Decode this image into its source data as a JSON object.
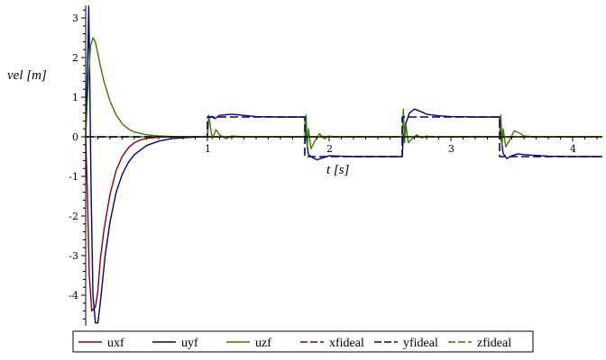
{
  "chart_data": {
    "type": "line",
    "title": "",
    "xlabel": "t [s]",
    "ylabel": "vel [m]",
    "xlim": [
      0,
      4.25
    ],
    "ylim": [
      -4.7,
      3.3
    ],
    "x_ticks": [
      1,
      2,
      3,
      4
    ],
    "y_ticks": [
      3,
      2,
      1,
      0,
      -1,
      -2,
      -3,
      -4
    ],
    "grid": false,
    "legend_position": "bottom",
    "series": [
      {
        "name": "uxf",
        "color": "#8b0000",
        "dash": "solid",
        "x": [
          0,
          0.015,
          0.03,
          0.05,
          0.08,
          0.1,
          0.12,
          0.15,
          0.2,
          0.25,
          0.3,
          0.35,
          0.4,
          0.45,
          0.5,
          0.6,
          0.7,
          0.9,
          1.0,
          1.8,
          2.6,
          3.4,
          4.25
        ],
        "y": [
          0,
          -1.5,
          -3.5,
          -4.4,
          -4.3,
          -3.9,
          -3.1,
          -2.35,
          -1.45,
          -0.85,
          -0.5,
          -0.28,
          -0.15,
          -0.08,
          -0.04,
          -0.01,
          0,
          0,
          0,
          0,
          0,
          0,
          0
        ]
      },
      {
        "name": "uyf",
        "color": "#000080",
        "dash": "solid",
        "x": [
          0,
          0.02,
          0.025,
          0.03,
          0.045,
          0.06,
          0.08,
          0.1,
          0.12,
          0.14,
          0.16,
          0.2,
          0.25,
          0.3,
          0.35,
          0.4,
          0.5,
          0.6,
          0.7,
          0.8,
          0.9,
          0.96,
          0.99,
          1.0,
          1.01,
          1.03,
          1.06,
          1.1,
          1.2,
          1.3,
          1.4,
          1.6,
          1.8,
          1.81,
          1.83,
          1.86,
          1.9,
          1.95,
          2.0,
          2.1,
          2.2,
          2.4,
          2.6,
          2.61,
          2.63,
          2.66,
          2.7,
          2.75,
          2.8,
          2.9,
          3.0,
          3.2,
          3.4,
          3.41,
          3.43,
          3.46,
          3.5,
          3.55,
          3.6,
          3.8,
          4.0,
          4.25
        ],
        "y": [
          0,
          2.4,
          3.3,
          2.4,
          -1.5,
          -4.0,
          -4.7,
          -4.7,
          -4.2,
          -3.6,
          -3.0,
          -2.15,
          -1.4,
          -0.95,
          -0.65,
          -0.45,
          -0.22,
          -0.11,
          -0.05,
          -0.025,
          -0.01,
          -0.005,
          0,
          0,
          0.45,
          0.52,
          0.46,
          0.54,
          0.57,
          0.54,
          0.51,
          0.5,
          0.5,
          0,
          -0.45,
          -0.52,
          -0.58,
          -0.53,
          -0.48,
          -0.49,
          -0.5,
          -0.5,
          -0.5,
          0,
          0.35,
          0.6,
          0.7,
          0.64,
          0.57,
          0.53,
          0.51,
          0.5,
          0.5,
          0,
          -0.42,
          -0.55,
          -0.48,
          -0.43,
          -0.45,
          -0.49,
          -0.5,
          -0.5
        ]
      },
      {
        "name": "uzf",
        "color": "#3c7a00",
        "dash": "solid",
        "x": [
          0,
          0.02,
          0.04,
          0.06,
          0.08,
          0.1,
          0.12,
          0.15,
          0.2,
          0.25,
          0.3,
          0.35,
          0.4,
          0.5,
          0.6,
          0.7,
          0.8,
          0.9,
          1.0,
          1.01,
          1.04,
          1.07,
          1.1,
          1.15,
          1.2,
          1.3,
          1.8,
          1.81,
          1.82,
          1.83,
          1.85,
          1.88,
          1.92,
          1.96,
          2.0,
          2.05,
          2.1,
          2.6,
          2.61,
          2.62,
          2.63,
          2.65,
          2.68,
          2.72,
          2.76,
          2.8,
          2.85,
          2.9,
          3.4,
          3.41,
          3.42,
          3.43,
          3.45,
          3.48,
          3.52,
          3.56,
          3.6,
          3.65,
          3.7,
          4.25
        ],
        "y": [
          0,
          1.3,
          2.3,
          2.5,
          2.4,
          2.1,
          1.8,
          1.4,
          0.9,
          0.55,
          0.33,
          0.2,
          0.12,
          0.05,
          0.02,
          0.01,
          0,
          0,
          0,
          0.55,
          -0.05,
          0.18,
          0.05,
          -0.05,
          0.02,
          0,
          0,
          0.55,
          -0.25,
          0.2,
          -0.3,
          -0.12,
          0.08,
          -0.05,
          0.02,
          -0.01,
          0,
          0,
          0.7,
          -0.15,
          0.3,
          -0.15,
          -0.05,
          0.05,
          -0.03,
          0.02,
          -0.01,
          0,
          0,
          0.55,
          -0.2,
          0.2,
          -0.25,
          -0.1,
          0.15,
          0.1,
          0.02,
          0.01,
          0,
          0
        ]
      },
      {
        "name": "xfideal",
        "color": "#8b0000",
        "dash": "dashed",
        "x": [
          0,
          4.25
        ],
        "y": [
          0,
          0
        ]
      },
      {
        "name": "yfideal",
        "color": "#000080",
        "dash": "dashed",
        "x": [
          0,
          1.0,
          1.0,
          1.8,
          1.8,
          2.6,
          2.6,
          3.4,
          3.4,
          4.25
        ],
        "y": [
          0,
          0,
          0.5,
          0.5,
          -0.5,
          -0.5,
          0.5,
          0.5,
          -0.5,
          -0.5
        ]
      },
      {
        "name": "zfideal",
        "color": "#3c7a00",
        "dash": "dashed",
        "x": [
          0,
          4.25
        ],
        "y": [
          0,
          0
        ]
      }
    ]
  }
}
